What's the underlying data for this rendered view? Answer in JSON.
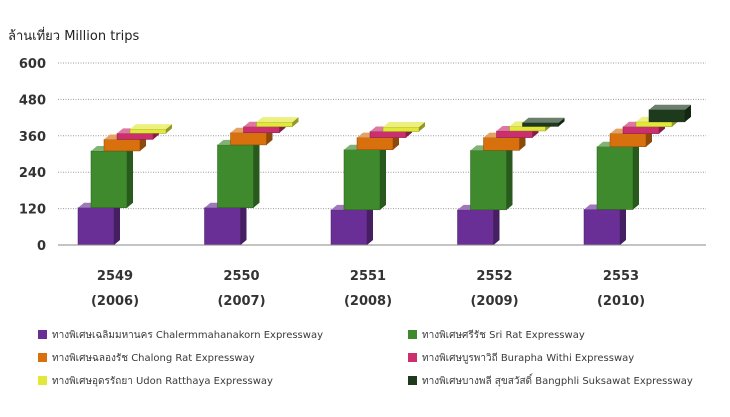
{
  "chart_data": {
    "type": "bar",
    "stacked": true,
    "style": "3d-staggered",
    "unit_label": "ล้านเที่ยว  Million trips",
    "ylim": [
      0,
      600
    ],
    "yticks": [
      "0",
      "120",
      "240",
      "360",
      "480",
      "600"
    ],
    "grid": true,
    "legend_position": "bottom",
    "categories": [
      {
        "line1": "2549",
        "line2": "(2006)"
      },
      {
        "line1": "2550",
        "line2": "(2007)"
      },
      {
        "line1": "2551",
        "line2": "(2008)"
      },
      {
        "line1": "2552",
        "line2": "(2009)"
      },
      {
        "line1": "2553",
        "line2": "(2010)"
      }
    ],
    "series": [
      {
        "name": "ทางพิเศษเฉลิมมหานคร Chalermmahanakorn Expressway",
        "color": "#6a2f96",
        "values": [
          123,
          123,
          116,
          116,
          117
        ]
      },
      {
        "name": "ทางพิเศษศรีรัช Sri Rat Expressway",
        "color": "#3f8a2c",
        "values": [
          187,
          207,
          198,
          196,
          207
        ]
      },
      {
        "name": "ทางพิเศษฉลองรัช Chalong Rat Expressway",
        "color": "#d8700e",
        "values": [
          38,
          40,
          40,
          42,
          43
        ]
      },
      {
        "name": "ทางพิเศษบูรพาวิถี Burapha Withi Expressway",
        "color": "#cc2f6d",
        "values": [
          20,
          20,
          20,
          22,
          23
        ]
      },
      {
        "name": "ทางพิเศษอุดรรัถยา Udon Ratthaya Expressway",
        "color": "#e2e83a",
        "values": [
          14,
          15,
          15,
          15,
          16
        ]
      },
      {
        "name": "ทางพิเศษบางพลี สุขสวัสดิ์ Bangphli Suksawat Expressway",
        "color": "#1d3a1d",
        "values": [
          0,
          0,
          0,
          12,
          40
        ]
      }
    ]
  }
}
